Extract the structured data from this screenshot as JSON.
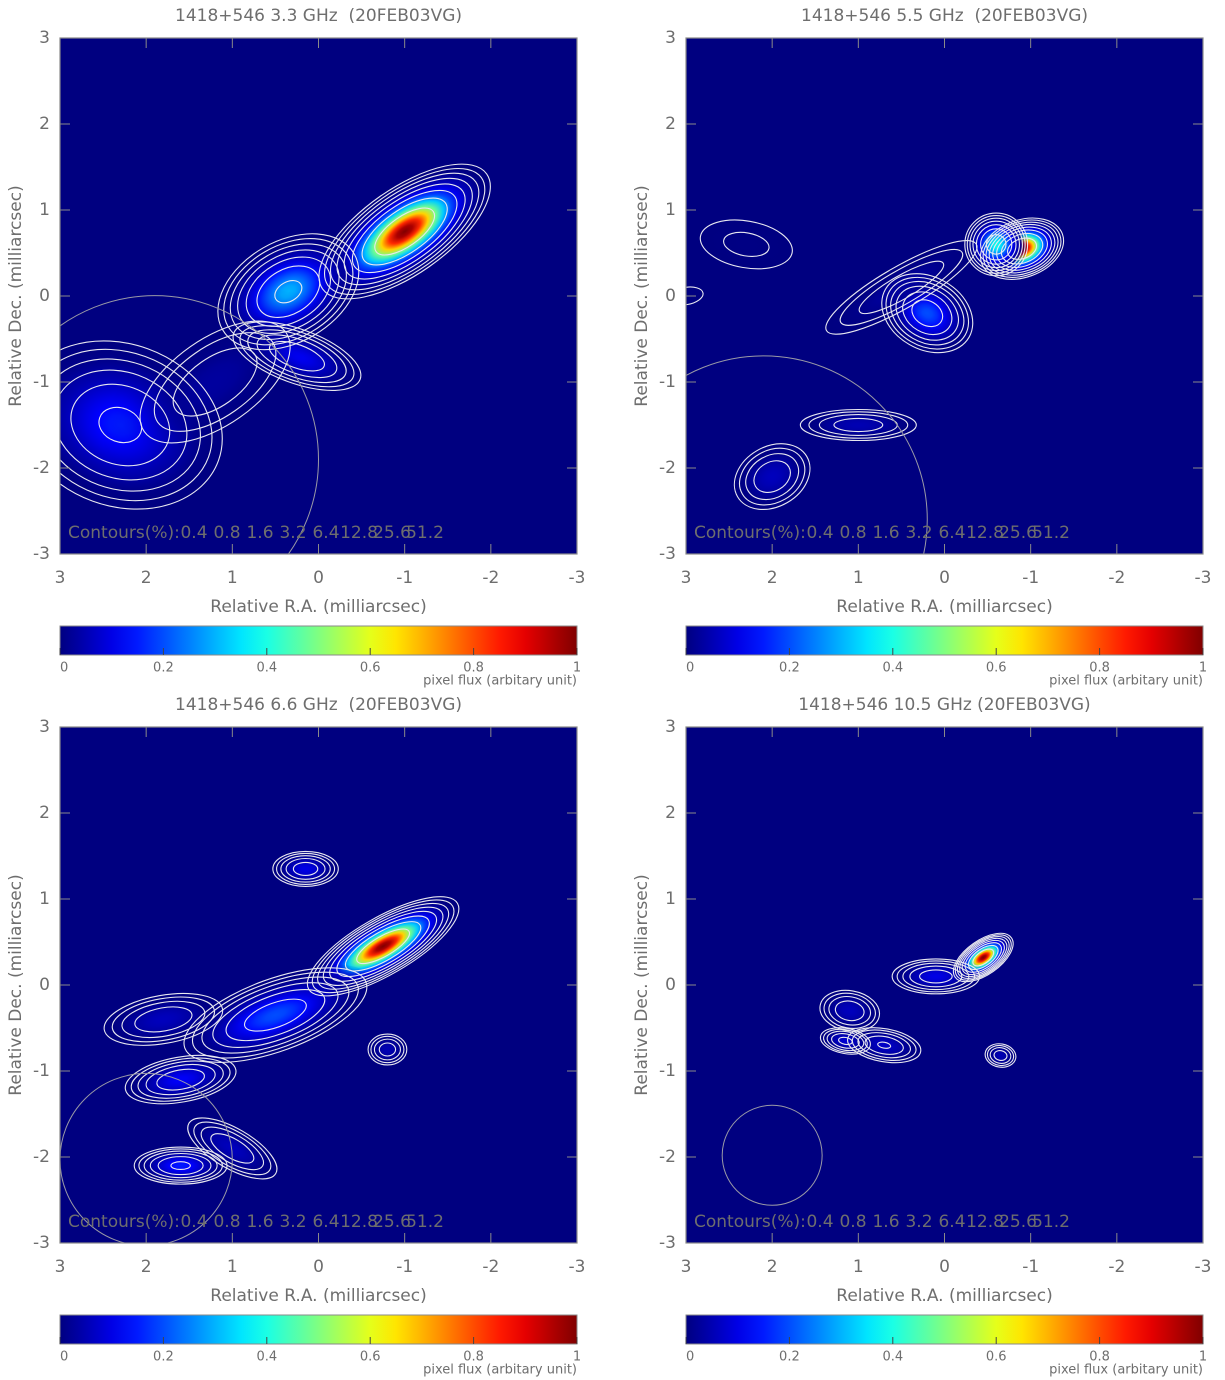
{
  "chart_data": [
    {
      "type": "contour",
      "title": "1418+546 3.3 GHz  (20FEB03VG)",
      "x_label": "Relative R.A. (milliarcsec)",
      "y_label": "Relative Dec. (milliarcsec)",
      "xlim": [
        3,
        -3
      ],
      "ylim": [
        -3,
        3
      ],
      "xticks": [
        3,
        2,
        1,
        0,
        -1,
        -2,
        -3
      ],
      "yticks": [
        -3,
        -2,
        -1,
        0,
        1,
        2,
        3
      ],
      "contour_label": "Contours(%):",
      "contour_levels": [
        0.4,
        0.8,
        1.6,
        3.2,
        6.4,
        12.8,
        25.6,
        51.2
      ],
      "x": [
        -1.0,
        0.35,
        0.25,
        2.3,
        1.2
      ],
      "y": [
        0.75,
        0.05,
        -0.7,
        -1.5,
        -1.0
      ],
      "values": [
        1.0,
        0.3,
        0.12,
        0.15,
        0.03
      ],
      "sx": [
        0.35,
        0.3,
        0.12,
        0.45,
        0.5
      ],
      "sy": [
        0.15,
        0.2,
        0.3,
        0.35,
        0.25
      ],
      "angle": [
        35,
        30,
        70,
        -20,
        35
      ],
      "beam": [
        1.9,
        -1.9,
        1.9
      ],
      "colorbar": {
        "lim": [
          0,
          1
        ],
        "ticks": [
          0,
          0.2,
          0.4,
          0.6,
          0.8,
          1
        ],
        "label": "pixel flux (arbitary unit)"
      }
    },
    {
      "type": "contour",
      "title": "1418+546 5.5 GHz  (20FEB03VG)",
      "x_label": "Relative R.A. (milliarcsec)",
      "y_label": "Relative Dec. (milliarcsec)",
      "xlim": [
        3,
        -3
      ],
      "ylim": [
        -3,
        3
      ],
      "xticks": [
        3,
        2,
        1,
        0,
        -1,
        -2,
        -3
      ],
      "yticks": [
        -3,
        -2,
        -1,
        0,
        1,
        2,
        3
      ],
      "contour_label": "Contours(%):",
      "contour_levels": [
        0.4,
        0.8,
        1.6,
        3.2,
        6.4,
        12.8,
        25.6,
        51.2
      ],
      "x": [
        -0.9,
        -0.6,
        0.2,
        1.0,
        2.0,
        2.3,
        3.0,
        0.5
      ],
      "y": [
        0.55,
        0.6,
        -0.2,
        -1.5,
        -2.1,
        0.6,
        0,
        0.1
      ],
      "values": [
        1.0,
        0.4,
        0.2,
        0.05,
        0.06,
        0.01,
        0.005,
        0.03
      ],
      "sx": [
        0.15,
        0.12,
        0.2,
        0.08,
        0.15,
        0.2,
        0.3,
        0.5
      ],
      "sy": [
        0.1,
        0.12,
        0.15,
        0.3,
        0.2,
        0.4,
        0.15,
        0.12
      ],
      "angle": [
        20,
        0,
        -30,
        90,
        -60,
        80,
        10,
        30
      ],
      "beam": [
        2.1,
        -2.6,
        1.9
      ],
      "colorbar": {
        "lim": [
          0,
          1
        ],
        "ticks": [
          0,
          0.2,
          0.4,
          0.6,
          0.8,
          1
        ],
        "label": "pixel flux (arbitary unit)"
      }
    },
    {
      "type": "contour",
      "title": "1418+546 6.6 GHz  (20FEB03VG)",
      "x_label": "Relative R.A. (milliarcsec)",
      "y_label": "Relative Dec. (milliarcsec)",
      "xlim": [
        3,
        -3
      ],
      "ylim": [
        -3,
        3
      ],
      "xticks": [
        3,
        2,
        1,
        0,
        -1,
        -2,
        -3
      ],
      "yticks": [
        -3,
        -2,
        -1,
        0,
        1,
        2,
        3
      ],
      "contour_label": "Contours(%):",
      "contour_levels": [
        0.4,
        0.8,
        1.6,
        3.2,
        6.4,
        12.8,
        25.6,
        51.2
      ],
      "x": [
        -0.75,
        0.5,
        0.15,
        -0.8,
        1.6,
        1.8,
        1.6,
        1.0
      ],
      "y": [
        0.45,
        -0.35,
        1.35,
        -0.75,
        -1.1,
        -0.4,
        -2.1,
        -1.9
      ],
      "values": [
        1.0,
        0.2,
        0.1,
        0.05,
        0.12,
        0.06,
        0.15,
        0.06
      ],
      "sx": [
        0.3,
        0.4,
        0.08,
        0.1,
        0.1,
        0.12,
        0.2,
        0.25
      ],
      "sy": [
        0.1,
        0.15,
        0.15,
        0.08,
        0.25,
        0.3,
        0.08,
        0.1
      ],
      "angle": [
        30,
        20,
        90,
        0,
        100,
        100,
        0,
        -30
      ],
      "beam": [
        2.0,
        -2.03,
        1.0
      ],
      "colorbar": {
        "lim": [
          0,
          1
        ],
        "ticks": [
          0,
          0.2,
          0.4,
          0.6,
          0.8,
          1
        ],
        "label": "pixel flux (arbitary unit)"
      }
    },
    {
      "type": "contour",
      "title": "1418+546 10.5 GHz (20FEB03VG)",
      "x_label": "Relative R.A. (milliarcsec)",
      "y_label": "Relative Dec. (milliarcsec)",
      "xlim": [
        3,
        -3
      ],
      "ylim": [
        -3,
        3
      ],
      "xticks": [
        3,
        2,
        1,
        0,
        -1,
        -2,
        -3
      ],
      "yticks": [
        -3,
        -2,
        -1,
        0,
        1,
        2,
        3
      ],
      "contour_label": "Contours(%):",
      "contour_levels": [
        0.4,
        0.8,
        1.6,
        3.2,
        6.4,
        12.8,
        25.6,
        51.2
      ],
      "x": [
        -0.45,
        0.1,
        1.1,
        0.7,
        1.15,
        -0.65
      ],
      "y": [
        0.32,
        0.1,
        -0.3,
        -0.7,
        -0.65,
        -0.82
      ],
      "values": [
        1.0,
        0.1,
        0.06,
        0.07,
        0.08,
        0.05
      ],
      "sx": [
        0.12,
        0.2,
        0.1,
        0.08,
        0.06,
        0.06
      ],
      "sy": [
        0.06,
        0.08,
        0.15,
        0.18,
        0.12,
        0.08
      ],
      "angle": [
        35,
        0,
        80,
        80,
        80,
        80
      ],
      "beam": [
        2.0,
        -1.98,
        0.58
      ],
      "colorbar": {
        "lim": [
          0,
          1
        ],
        "ticks": [
          0,
          0.2,
          0.4,
          0.6,
          0.8,
          1
        ],
        "label": "pixel flux (arbitary unit)"
      }
    }
  ]
}
